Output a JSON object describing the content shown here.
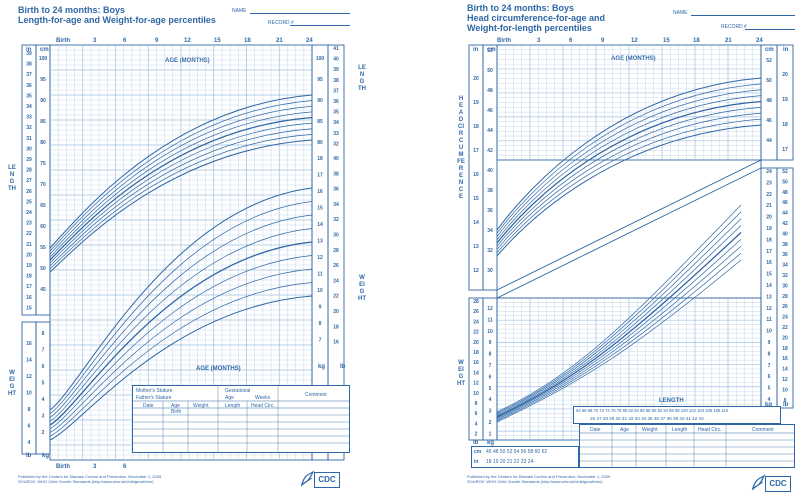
{
  "left_chart": {
    "title_line1": "Birth to 24 months: Boys",
    "title_line2": "Length-for-age and Weight-for-age percentiles",
    "name_label": "NAME",
    "record_label": "RECORD #",
    "top_axis": [
      "Birth",
      "3",
      "6",
      "9",
      "12",
      "15",
      "18",
      "21",
      "24"
    ],
    "bottom_axis": [
      "Birth",
      "3",
      "6"
    ],
    "age_label_top": "AGE (MONTHS)",
    "age_label_bottom": "AGE (MONTHS)",
    "unit_in": "in",
    "unit_cm": "cm",
    "unit_lb": "lb",
    "unit_kg": "kg",
    "length_word": "LENGTH",
    "weight_word": "WEIGHT",
    "left_in_ticks": [
      "39",
      "38",
      "37",
      "36",
      "35",
      "34",
      "33",
      "32",
      "31",
      "30",
      "29",
      "28",
      "27",
      "26",
      "25",
      "24",
      "23",
      "22",
      "21",
      "20",
      "19",
      "18",
      "17",
      "16",
      "15"
    ],
    "left_cm_ticks": [
      "100",
      "95",
      "90",
      "85",
      "80",
      "75",
      "70",
      "65",
      "60",
      "55",
      "50",
      "45"
    ],
    "right_cm_ticks": [
      "100",
      "95",
      "90",
      "85",
      "80"
    ],
    "right_in_ticks": [
      "41",
      "40",
      "39",
      "38",
      "37",
      "36",
      "35",
      "34",
      "33",
      "32"
    ],
    "right_kg_ticks": [
      "18",
      "17",
      "16",
      "15",
      "14",
      "13",
      "12",
      "11",
      "10",
      "9",
      "8",
      "7"
    ],
    "right_lb_ticks": [
      "40",
      "38",
      "36",
      "34",
      "32",
      "30",
      "28",
      "26",
      "24",
      "22",
      "20",
      "18",
      "16"
    ],
    "weight_left_lb": [
      "16",
      "14",
      "12",
      "10",
      "8",
      "6",
      "4"
    ],
    "weight_left_kg": [
      "8",
      "7",
      "6",
      "5",
      "4",
      "3",
      "2"
    ],
    "table_header_1": "Mother's Stature",
    "table_header_2": "Father's Stature",
    "table_gest": "Gestational",
    "table_age": "Age",
    "table_weeks": "Weeks",
    "table_comment": "Comment",
    "table_cols": [
      "Date",
      "Age",
      "Weight",
      "Length",
      "Head Circ."
    ],
    "table_birth": "Birth",
    "footer1": "Published by the Centers for Disease Control and Prevention, November 1, 2009",
    "footer2": "SOURCE: WHO Child Growth Standards (http://www.who.int/childgrowth/en)",
    "cdc": "CDC"
  },
  "right_chart": {
    "title_line1": "Birth to 24 months: Boys",
    "title_line2": "Head circumference-for-age and",
    "title_line3": "Weight-for-length percentiles",
    "name_label": "NAME",
    "record_label": "RECORD #",
    "top_axis": [
      "Birth",
      "3",
      "6",
      "9",
      "12",
      "15",
      "18",
      "21",
      "24"
    ],
    "age_label": "AGE (MONTHS)",
    "length_label": "LENGTH",
    "unit_in": "in",
    "unit_cm": "cm",
    "unit_lb": "lb",
    "unit_kg": "kg",
    "head_word": "HEADCIRCUMFERENCE",
    "weight_word": "WEIGHT",
    "hc_in_ticks": [
      "20",
      "19",
      "18",
      "17",
      "16",
      "15",
      "14",
      "13",
      "12"
    ],
    "hc_cm_ticks": [
      "52",
      "50",
      "48",
      "46",
      "44",
      "42",
      "40",
      "38",
      "36",
      "34",
      "32",
      "30"
    ],
    "hc_right_cm": [
      "52",
      "50",
      "48",
      "46",
      "44"
    ],
    "hc_right_in": [
      "20",
      "19",
      "18",
      "17"
    ],
    "w_right_kg": [
      "24",
      "23",
      "22",
      "21",
      "20",
      "19",
      "18",
      "17",
      "16",
      "15",
      "14",
      "13",
      "12",
      "11",
      "10",
      "9",
      "8",
      "7",
      "6",
      "5",
      "4"
    ],
    "w_right_lb": [
      "52",
      "50",
      "48",
      "46",
      "44",
      "42",
      "40",
      "38",
      "36",
      "34",
      "32",
      "30",
      "28",
      "26",
      "24",
      "22",
      "20",
      "18",
      "16",
      "14",
      "12",
      "10",
      "8"
    ],
    "w_left_lb": [
      "28",
      "26",
      "24",
      "22",
      "20",
      "18",
      "16",
      "14",
      "12",
      "10",
      "8",
      "6",
      "4",
      "2"
    ],
    "w_left_kg": [
      "12",
      "11",
      "10",
      "9",
      "8",
      "7",
      "6",
      "5",
      "4",
      "3",
      "2",
      "1"
    ],
    "length_cm_row": "64 66 68 70 72 74 76 78 80 82 84 86 88 90 92 94 96 98 100 102 104 106 108 110",
    "length_in_row": "26 27 28 29 30 31 32 33 34 35 36 37 38 39 40 41 42 43",
    "bottom_cm_row": "45 48 50 52 54 56 58 60 62",
    "bottom_in_row": "18 19 20 21 22 23 24",
    "table_cols": [
      "Date",
      "Age",
      "Weight",
      "Length",
      "Head Circ.",
      "Comment"
    ],
    "footer1": "Published by the Centers for Disease Control and Prevention, November 1, 2009",
    "footer2": "SOURCE: WHO Child Growth Standards (http://www.who.int/childgrowth/en)",
    "cdc": "CDC"
  },
  "colors": {
    "ink": "#2f67a6",
    "grid": "#9fc0e2",
    "curve": "#2f67a6"
  }
}
